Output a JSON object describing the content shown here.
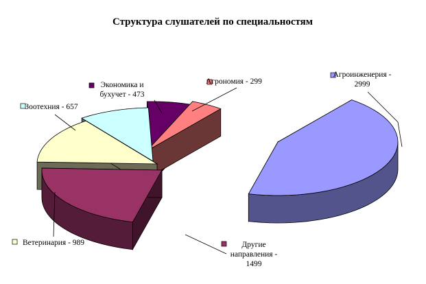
{
  "chart_data": {
    "type": "pie",
    "variant": "3d-exploded",
    "title": "Структура слушателей по специальностям",
    "legend_placement": "labels-next-to-slices",
    "series": [
      {
        "name": "",
        "slices": [
          {
            "label": "Агроинженерия",
            "value": 2999,
            "color": "#9999ff"
          },
          {
            "label": "Другие направления",
            "value": 1499,
            "color": "#993366"
          },
          {
            "label": "Ветеринария",
            "value": 989,
            "color": "#ffffcc"
          },
          {
            "label": "Зоотехния",
            "value": 657,
            "color": "#ccffff"
          },
          {
            "label": "Экономика и бухучет",
            "value": 473,
            "color": "#660066"
          },
          {
            "label": "Агрономия",
            "value": 299,
            "color": "#ff8080"
          }
        ]
      }
    ],
    "data_labels": [
      {
        "lines": [
          "Агроинженерия -",
          "2999"
        ]
      },
      {
        "lines": [
          "Другие",
          "направления -",
          "1499"
        ]
      },
      {
        "lines": [
          "Ветеринария - 989"
        ]
      },
      {
        "lines": [
          "Зоотехния - 657"
        ]
      },
      {
        "lines": [
          "Экономика и",
          "бухучет - 473"
        ]
      },
      {
        "lines": [
          "Агрономия - 299"
        ]
      }
    ]
  }
}
